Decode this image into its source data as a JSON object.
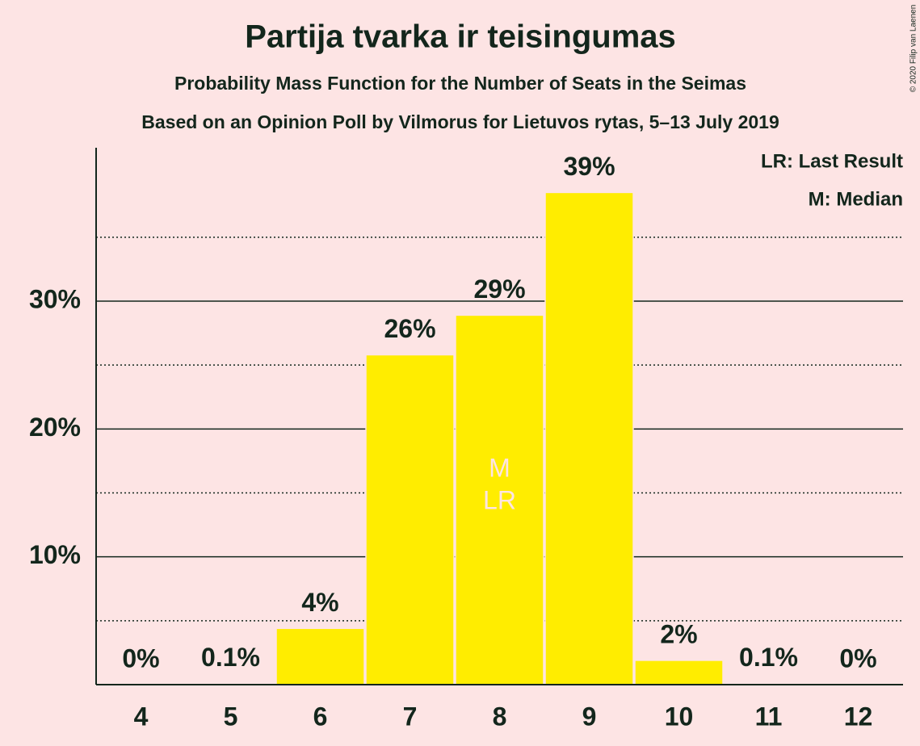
{
  "chart_data": {
    "type": "bar",
    "title": "Partija tvarka ir teisingumas",
    "subtitle": "Probability Mass Function for the Number of Seats in the Seimas",
    "source": "Based on an Opinion Poll by Vilmorus for Lietuvos rytas, 5–13 July 2019",
    "copyright": "© 2020 Filip van Laenen",
    "legend": [
      "LR: Last Result",
      "M: Median"
    ],
    "categories": [
      "4",
      "5",
      "6",
      "7",
      "8",
      "9",
      "10",
      "11",
      "12"
    ],
    "values": [
      0,
      0.1,
      4.4,
      25.8,
      28.9,
      38.5,
      1.9,
      0.1,
      0
    ],
    "value_labels": [
      "0%",
      "0.1%",
      "4%",
      "26%",
      "29%",
      "39%",
      "2%",
      "0.1%",
      "0%"
    ],
    "color": "#ffed00",
    "markers": [
      {
        "text": "M",
        "category": "8"
      },
      {
        "text": "LR",
        "category": "8"
      }
    ],
    "ylim": [
      0,
      42
    ],
    "yticks": [
      {
        "value": 10,
        "label": "10%"
      },
      {
        "value": 20,
        "label": "20%"
      },
      {
        "value": 30,
        "label": "30%"
      }
    ],
    "minor_yticks": [
      5,
      15,
      25,
      35
    ],
    "grid": true
  }
}
